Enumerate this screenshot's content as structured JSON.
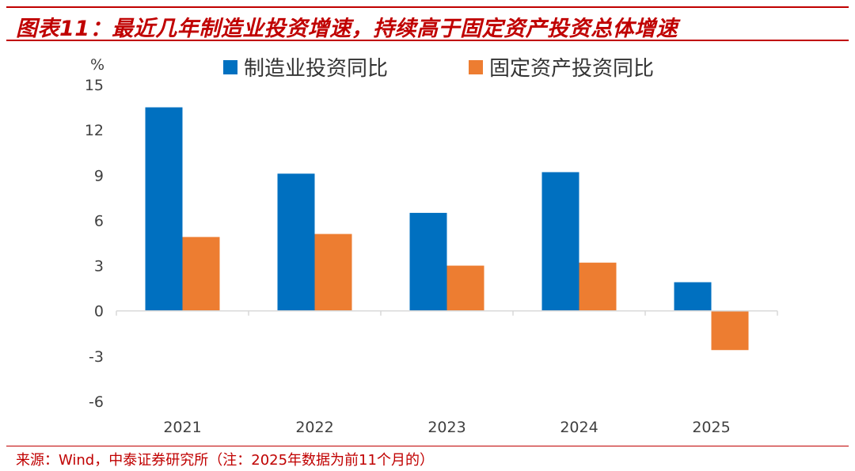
{
  "header": {
    "title": "图表11：最近几年制造业投资增速，持续高于固定资产投资总体增速"
  },
  "footer": {
    "source": "来源：Wind，中泰证券研究所（注：2025年数据为前11个月的）"
  },
  "colors": {
    "series_blue": "#0070c0",
    "series_orange": "#ed7d31",
    "accent_red": "#c00000"
  },
  "chart_data": {
    "type": "bar",
    "title": "",
    "ylabel": "%",
    "xlabel": "",
    "categories": [
      "2021",
      "2022",
      "2023",
      "2024",
      "2025"
    ],
    "series": [
      {
        "name": "制造业投资同比",
        "values": [
          13.5,
          9.1,
          6.5,
          9.2,
          1.9
        ]
      },
      {
        "name": "固定资产投资同比",
        "values": [
          4.9,
          5.1,
          3.0,
          3.2,
          -2.6
        ]
      }
    ],
    "ylim": [
      -6,
      15
    ],
    "yticks": [
      15,
      12,
      9,
      6,
      3,
      0,
      -3,
      -6
    ],
    "grid": false,
    "legend": "top"
  }
}
